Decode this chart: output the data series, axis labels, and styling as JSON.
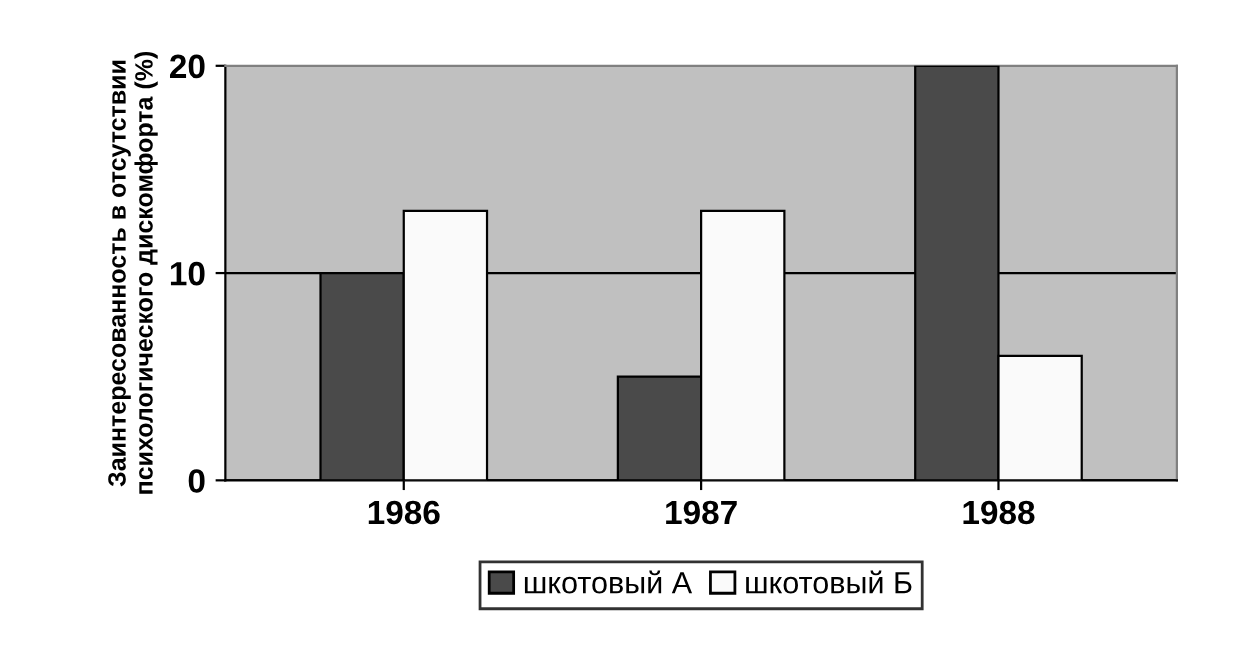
{
  "chart_data": {
    "type": "bar",
    "ylabel": "Заинтересованность в отсутствии психологического дискомфорта (%)",
    "categories": [
      "1986",
      "1987",
      "1988"
    ],
    "series": [
      {
        "name": "шкотовый А",
        "color": "#4a4a4a",
        "values": [
          10,
          5,
          20
        ]
      },
      {
        "name": "шкотовый Б",
        "color": "#fafafa",
        "values": [
          13,
          13,
          6
        ]
      }
    ],
    "ylim": [
      0,
      20
    ],
    "yticks": [
      0,
      10,
      20
    ],
    "grid": "y",
    "legend": "bottom"
  }
}
